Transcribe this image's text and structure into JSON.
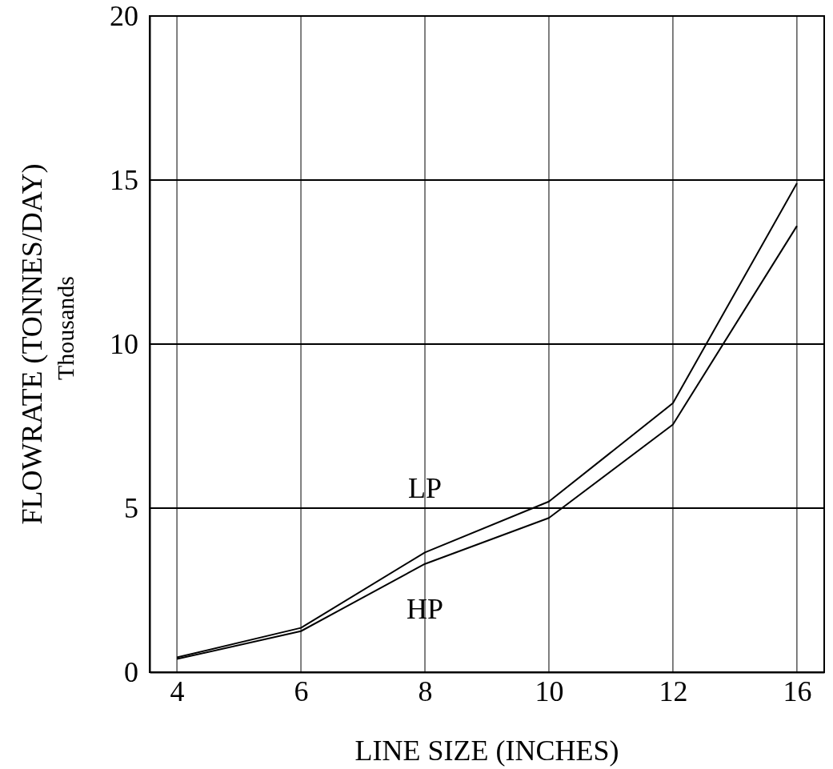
{
  "chart_data": {
    "type": "line",
    "xlabel": "LINE SIZE (INCHES)",
    "ylabel": "FLOWRATE (TONNES/DAY)",
    "annotations": [
      "Thousands"
    ],
    "categories": [
      "4",
      "6",
      "8",
      "10",
      "12",
      "16"
    ],
    "series": [
      {
        "name": "LP",
        "color": "#000000",
        "values": [
          0.45,
          1.35,
          3.65,
          5.2,
          8.2,
          14.9
        ]
      },
      {
        "name": "HP",
        "color": "#000000",
        "values": [
          0.4,
          1.25,
          3.3,
          4.7,
          7.55,
          13.6
        ]
      }
    ],
    "ylim": [
      0,
      20
    ],
    "yticks": [
      0,
      5,
      10,
      15,
      20
    ],
    "grid": true
  }
}
